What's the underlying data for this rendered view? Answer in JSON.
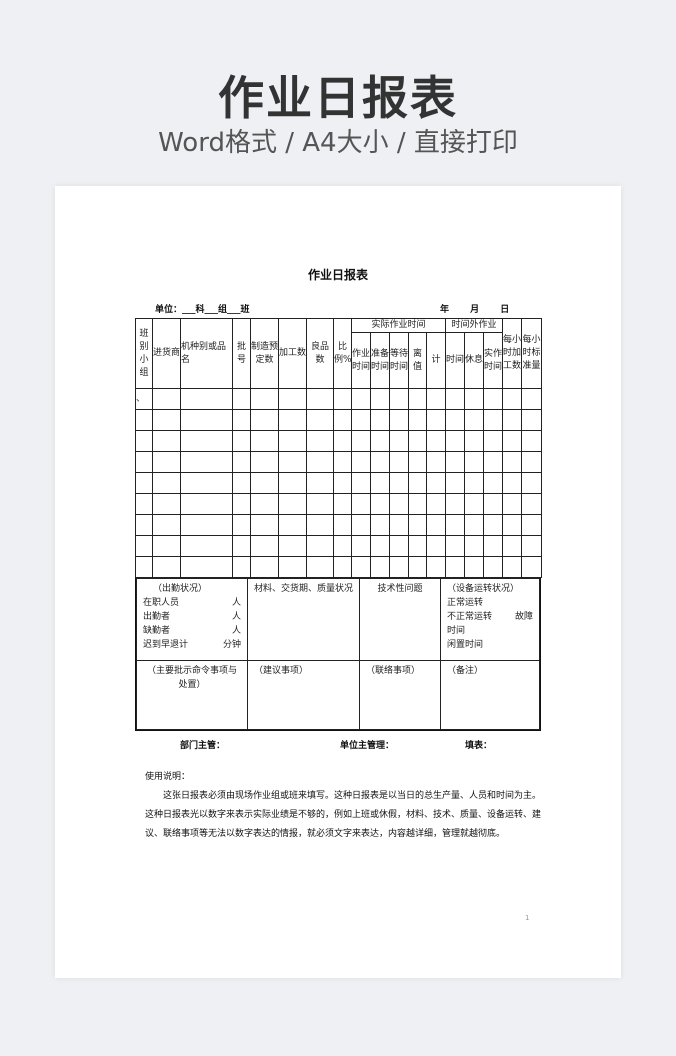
{
  "banner": {
    "title": "作业日报表",
    "subtitle": "Word格式 / A4大小 / 直接打印"
  },
  "doc": {
    "title": "作业日报表",
    "unit_line": "单位：___科___组___班",
    "date_line": "年 月 日",
    "headers": {
      "c1": "班别小组",
      "c2": "进货商",
      "c3": "机种别或品名",
      "c4": "批号",
      "c5": "制造预定数",
      "c6": "加工数",
      "c7": "良品数",
      "c8": "比例%",
      "group1": "实际作业时间",
      "g1a": "作业时间",
      "g1b": "准备时间",
      "g1c": "等待时间",
      "g1d": "离值",
      "c13": "计",
      "group2": "时间外作业",
      "g2a": "时间",
      "g2b": "休息",
      "g2c": "实作时间",
      "c17": "每小时加工数",
      "c18": "每小时标准量"
    },
    "first_row_mark": "、",
    "attendance": {
      "title": "（出勤状况）",
      "rows": [
        [
          "在职人员",
          "人"
        ],
        [
          "出勤者",
          "人"
        ],
        [
          "缺勤者",
          "人"
        ],
        [
          "迟到早退计",
          "分钟"
        ]
      ]
    },
    "materials": "材料、交货期、质量状况",
    "tech": "技术性问题",
    "equipment": {
      "title": "（设备运转状况）",
      "l1": "正常运转",
      "l2a": "不正常运转",
      "l2b": "故障",
      "l3": "时间",
      "l4": "闲置时间"
    },
    "instructions": "（主要批示命令事项与处置）",
    "suggestions": "（建议事项）",
    "contact": "（联络事项）",
    "remarks": "（备注）",
    "sign": {
      "dept": "部门主管：",
      "unit": "单位主管理：",
      "fill": "填表："
    },
    "usage_title": "使用说明：",
    "usage_text": "这张日报表必须由现场作业组或班来填写。这种日报表是以当日的总生产量、人员和时间为主。这种日报表光以数字来表示实际业绩是不够的，例如上班或休假，材料、技术、质量、设备运转、建议、联络事项等无法以数字表达的情报，就必须文字来表达，内容越详细，管理就越彻底。",
    "page_number": "1"
  }
}
